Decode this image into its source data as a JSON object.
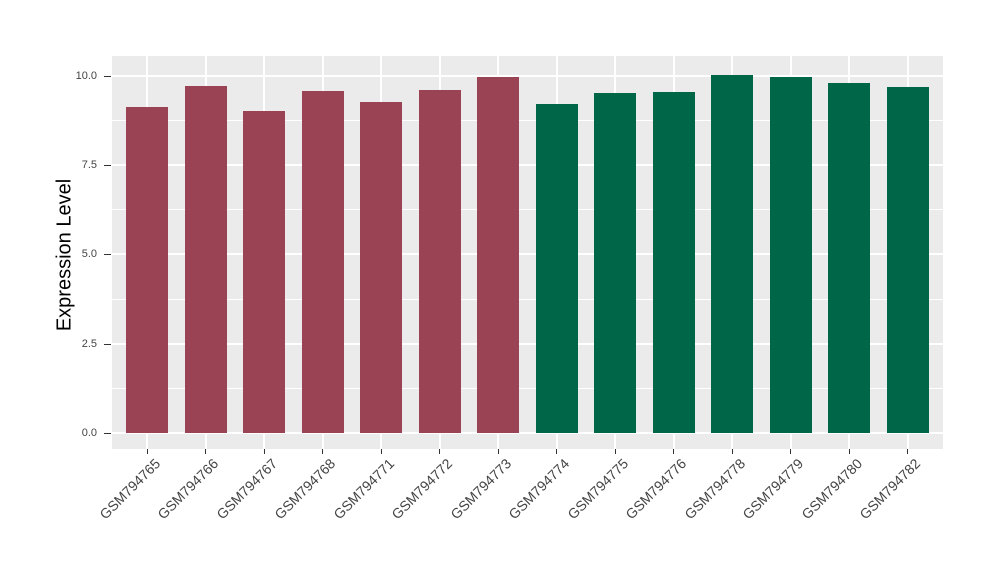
{
  "chart_data": {
    "type": "bar",
    "ylabel": "Expression Level",
    "xlabel": "",
    "categories": [
      "GSM794765",
      "GSM794766",
      "GSM794767",
      "GSM794768",
      "GSM794771",
      "GSM794772",
      "GSM794773",
      "GSM794774",
      "GSM794775",
      "GSM794776",
      "GSM794778",
      "GSM794779",
      "GSM794780",
      "GSM794782"
    ],
    "values": [
      9.11,
      9.72,
      9.0,
      9.58,
      9.27,
      9.6,
      9.97,
      9.22,
      9.51,
      9.55,
      10.02,
      9.97,
      9.8,
      9.69
    ],
    "bar_groups": [
      "A",
      "A",
      "A",
      "A",
      "A",
      "A",
      "A",
      "B",
      "B",
      "B",
      "B",
      "B",
      "B",
      "B"
    ],
    "group_colors": {
      "A": "#9A4354",
      "B": "#006648"
    },
    "yticks": [
      0,
      2.5,
      5,
      7.5,
      10
    ],
    "ytick_labels": [
      "0.0",
      "2.5",
      "5.0",
      "7.5",
      "10.0"
    ],
    "ylim": [
      -0.44,
      10.55
    ],
    "x_label_rotation_deg": 45,
    "bar_width_fraction": 0.715,
    "legend": "none",
    "grid": "white major+minor horizontal, white vertical at category centers",
    "panel_bg": "#EBEBEB",
    "grid_color": "#FFFFFF",
    "axis_text_color": "#444444",
    "axis_title_color": "#000000",
    "tick_mark_color": "#333333"
  }
}
